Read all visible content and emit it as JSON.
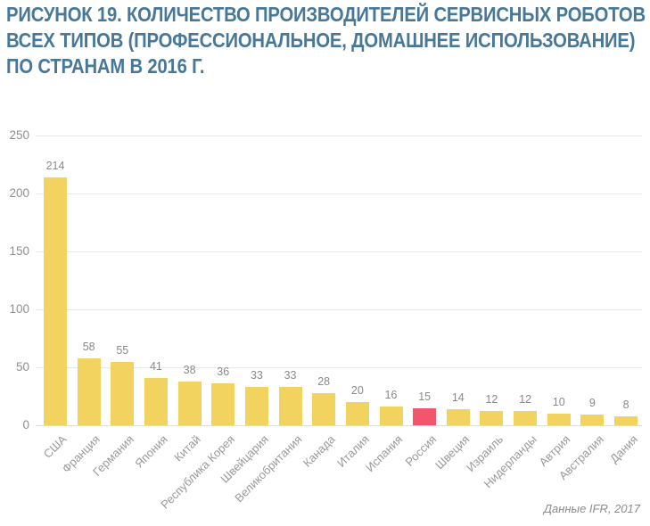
{
  "title": "РИСУНОК 19. КОЛИЧЕСТВО ПРОИЗВОДИТЕЛЕЙ СЕРВИСНЫХ РОБОТОВ\nВСЕХ ТИПОВ (ПРОФЕССИОНАЛЬНОЕ, ДОМАШНЕЕ ИСПОЛЬЗОВАНИЕ)\nПО СТРАНАМ В 2016 Г.",
  "source_note": "Данные IFR, 2017",
  "colors": {
    "title_text": "#47789A",
    "bar": "#F3D35F",
    "bar_highlight": "#F1566C",
    "grid": "#E8E8E8",
    "baseline": "#DCDCDC",
    "axis_text": "#8F8F8F",
    "value_label_text": "#8A8A8A",
    "category_text": "#999999"
  },
  "chart_data": {
    "type": "bar",
    "title": "РИСУНОК 19. КОЛИЧЕСТВО ПРОИЗВОДИТЕЛЕЙ СЕРВИСНЫХ РОБОТОВ ВСЕХ ТИПОВ (ПРОФЕССИОНАЛЬНОЕ, ДОМАШНЕЕ ИСПОЛЬЗОВАНИЕ) ПО СТРАНАМ В 2016 Г.",
    "xlabel": "",
    "ylabel": "",
    "categories": [
      "США",
      "Франция",
      "Германия",
      "Япония",
      "Китай",
      "Республика Корея",
      "Швейцария",
      "Великобритания",
      "Канада",
      "Италия",
      "Испания",
      "Россия",
      "Швеция",
      "Израиль",
      "Нидерланды",
      "Автрия",
      "Австралия",
      "Дания"
    ],
    "values": [
      214,
      58,
      55,
      41,
      38,
      36,
      33,
      33,
      28,
      20,
      16,
      15,
      14,
      12,
      12,
      10,
      9,
      8
    ],
    "highlight_category": "Россия",
    "ylim": [
      0,
      250
    ],
    "yticks": [
      0,
      50,
      100,
      150,
      200,
      250
    ],
    "grid": true,
    "legend": false,
    "source": "Данные IFR, 2017"
  }
}
